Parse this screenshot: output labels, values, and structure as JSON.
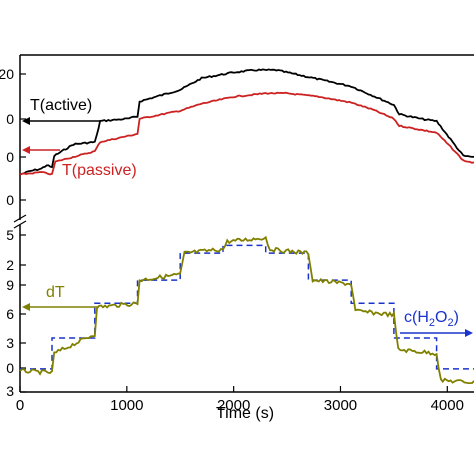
{
  "chart_data": {
    "type": "line",
    "xlabel": "Time (s)",
    "x_ticks": [
      "0",
      "1000",
      "2000",
      "3000",
      "4000"
    ],
    "xlim": [
      0,
      4250
    ],
    "top_panel": {
      "y_tick_labels": [
        "20",
        "0",
        "0",
        "0"
      ],
      "series": [
        {
          "name": "T(active)",
          "color": "#000000",
          "points": [
            [
              0,
              0.22
            ],
            [
              100,
              0.25
            ],
            [
              200,
              0.27
            ],
            [
              250,
              0.3
            ],
            [
              300,
              0.28
            ],
            [
              320,
              0.38
            ],
            [
              500,
              0.48
            ],
            [
              700,
              0.5
            ],
            [
              720,
              0.56
            ],
            [
              750,
              0.68
            ],
            [
              1000,
              0.7
            ],
            [
              1100,
              0.72
            ],
            [
              1120,
              0.85
            ],
            [
              1500,
              0.95
            ],
            [
              1700,
              1.05
            ],
            [
              2000,
              1.1
            ],
            [
              2200,
              1.12
            ],
            [
              2400,
              1.12
            ],
            [
              2600,
              1.08
            ],
            [
              2800,
              1.04
            ],
            [
              3100,
              0.98
            ],
            [
              3300,
              0.9
            ],
            [
              3500,
              0.82
            ],
            [
              3550,
              0.74
            ],
            [
              3750,
              0.7
            ],
            [
              3900,
              0.68
            ],
            [
              4050,
              0.5
            ],
            [
              4150,
              0.38
            ],
            [
              4250,
              0.37
            ]
          ]
        },
        {
          "name": "T(passive)",
          "color": "#cc2222",
          "points": [
            [
              0,
              0.22
            ],
            [
              100,
              0.23
            ],
            [
              200,
              0.24
            ],
            [
              300,
              0.22
            ],
            [
              330,
              0.33
            ],
            [
              700,
              0.42
            ],
            [
              750,
              0.5
            ],
            [
              1100,
              0.57
            ],
            [
              1120,
              0.7
            ],
            [
              1500,
              0.77
            ],
            [
              1600,
              0.8
            ],
            [
              1700,
              0.83
            ],
            [
              2000,
              0.89
            ],
            [
              2300,
              0.92
            ],
            [
              2500,
              0.92
            ],
            [
              2800,
              0.89
            ],
            [
              3100,
              0.84
            ],
            [
              3300,
              0.78
            ],
            [
              3500,
              0.7
            ],
            [
              3550,
              0.64
            ],
            [
              3900,
              0.58
            ],
            [
              4050,
              0.44
            ],
            [
              4150,
              0.34
            ],
            [
              4250,
              0.32
            ]
          ]
        }
      ]
    },
    "bottom_panel": {
      "y_tick_labels": [
        "5",
        "2",
        "9",
        "6",
        "3",
        "0",
        "3"
      ],
      "series": [
        {
          "name": "dT",
          "color": "#808000",
          "points": [
            [
              0,
              -0.1
            ],
            [
              300,
              -0.2
            ],
            [
              320,
              0.8
            ],
            [
              700,
              1.8
            ],
            [
              720,
              3.2
            ],
            [
              1100,
              3.4
            ],
            [
              1120,
              4.6
            ],
            [
              1500,
              4.9
            ],
            [
              1540,
              6.0
            ],
            [
              1900,
              6.2
            ],
            [
              1940,
              6.6
            ],
            [
              2300,
              6.8
            ],
            [
              2340,
              6.2
            ],
            [
              2700,
              6.0
            ],
            [
              2740,
              4.6
            ],
            [
              3100,
              4.4
            ],
            [
              3140,
              3.0
            ],
            [
              3500,
              2.8
            ],
            [
              3540,
              1.0
            ],
            [
              3900,
              0.8
            ],
            [
              3940,
              -0.6
            ],
            [
              4250,
              -0.7
            ]
          ]
        },
        {
          "name": "c(H2O2)",
          "color": "#1a33cc",
          "dashed": true,
          "points": [
            [
              0,
              0.0
            ],
            [
              300,
              0.0
            ],
            [
              300,
              1.6
            ],
            [
              700,
              1.6
            ],
            [
              700,
              3.4
            ],
            [
              1100,
              3.4
            ],
            [
              1100,
              4.6
            ],
            [
              1500,
              4.6
            ],
            [
              1500,
              6.0
            ],
            [
              1900,
              6.0
            ],
            [
              1900,
              6.4
            ],
            [
              2300,
              6.4
            ],
            [
              2300,
              6.0
            ],
            [
              2700,
              6.0
            ],
            [
              2700,
              4.6
            ],
            [
              3100,
              4.6
            ],
            [
              3100,
              3.4
            ],
            [
              3500,
              3.4
            ],
            [
              3500,
              1.6
            ],
            [
              3900,
              1.6
            ],
            [
              3900,
              0.0
            ],
            [
              4250,
              0.0
            ]
          ]
        }
      ]
    },
    "annotations": [
      {
        "text": "T(active)",
        "arrow": "left",
        "color": "#000000"
      },
      {
        "text": "T(passive)",
        "arrow": "left",
        "color": "#cc2222"
      },
      {
        "text": "dT",
        "arrow": "left",
        "color": "#808000"
      },
      {
        "label_prefix": "c(H",
        "sub1": "2",
        "mid": "O",
        "sub2": "2",
        "label_suffix": ")",
        "arrow": "right",
        "color": "#1a33cc"
      }
    ]
  }
}
